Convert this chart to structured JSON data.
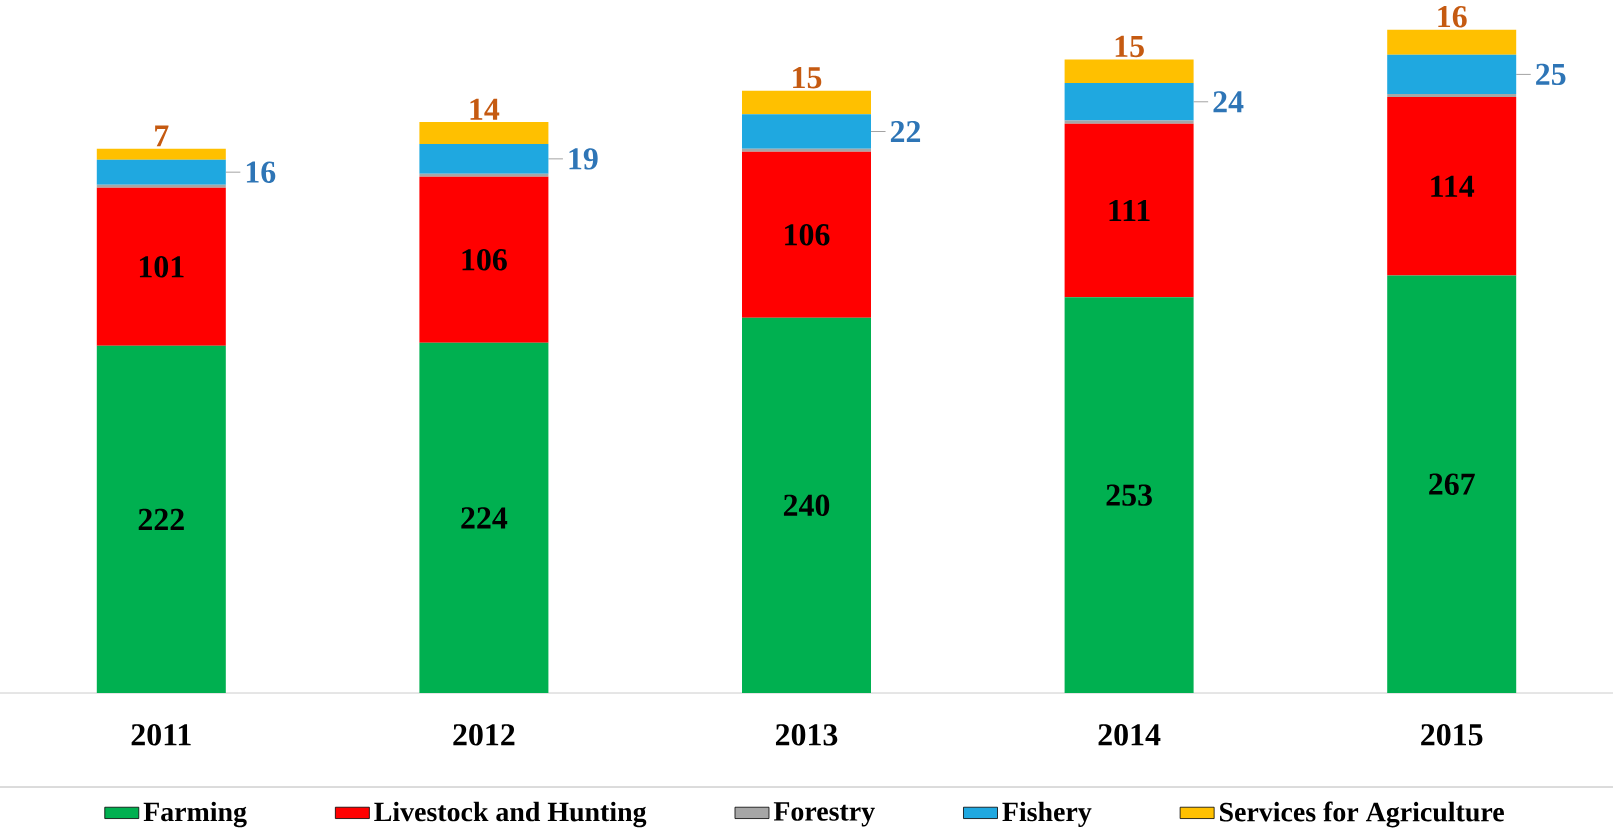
{
  "chart_data": {
    "type": "bar",
    "stacked": true,
    "categories": [
      "2011",
      "2012",
      "2013",
      "2014",
      "2015"
    ],
    "legend": "bottom",
    "series": [
      {
        "name": "Farming",
        "color": "#00b050",
        "values": [
          222,
          224,
          240,
          253,
          267
        ],
        "value_labels": [
          "222",
          "224",
          "240",
          "253",
          "267"
        ]
      },
      {
        "name": "Livestock and Hunting",
        "color": "#ff0000",
        "values": [
          101,
          106,
          106,
          111,
          114
        ],
        "value_labels": [
          "101",
          "106",
          "106",
          "111",
          "114"
        ]
      },
      {
        "name": "Forestry",
        "color": "#a6a6a6",
        "values": [
          2,
          2,
          2,
          2,
          2
        ],
        "value_labels": [
          null,
          null,
          null,
          null,
          null
        ]
      },
      {
        "name": "Fishery",
        "color": "#1fa8e0",
        "values": [
          16,
          19,
          22,
          24,
          25
        ],
        "value_labels": [
          "16",
          "19",
          "22",
          "24",
          "25"
        ]
      },
      {
        "name": "Services for Agriculture",
        "color": "#ffc000",
        "values": [
          7,
          14,
          15,
          15,
          16
        ],
        "value_labels": [
          "7",
          "14",
          "15",
          "15",
          "16"
        ]
      }
    ]
  }
}
